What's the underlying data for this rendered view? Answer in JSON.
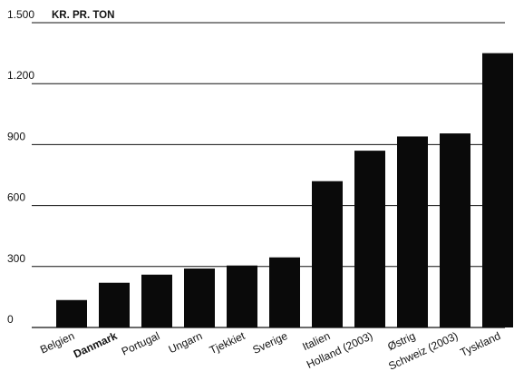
{
  "chart_data": {
    "type": "bar",
    "title": "",
    "ylabel": "KR. PR. TON",
    "ylim": [
      0,
      1500
    ],
    "yticks": [
      {
        "value": 0,
        "label": "0"
      },
      {
        "value": 300,
        "label": "300"
      },
      {
        "value": 600,
        "label": "600"
      },
      {
        "value": 900,
        "label": "900"
      },
      {
        "value": 1200,
        "label": "1.200"
      },
      {
        "value": 1500,
        "label": "1.500"
      }
    ],
    "grid": true,
    "categories": [
      "Belgien",
      "Danmark",
      "Portugal",
      "Ungarn",
      "Tjekkiet",
      "Sverige",
      "Italien",
      "Holland (2003)",
      "Østrig",
      "Schweiz (2003)",
      "Tyskland"
    ],
    "highlight_category": "Danmark",
    "values": [
      135,
      220,
      260,
      290,
      305,
      345,
      720,
      870,
      940,
      955,
      1350
    ],
    "bar_color": "#0a0a0a"
  }
}
